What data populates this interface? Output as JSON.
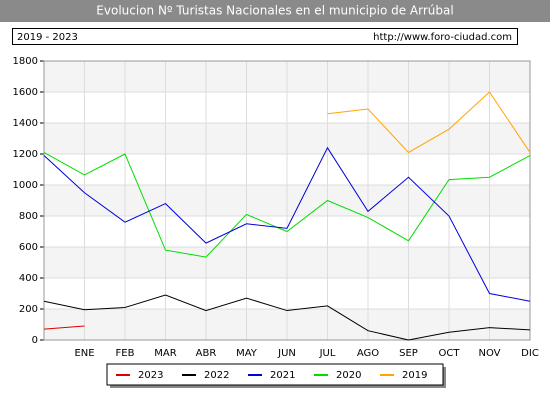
{
  "chart_data": {
    "type": "line",
    "title": "Evolucion Nº Turistas Nacionales en el municipio de Arrúbal",
    "period": "2019 - 2023",
    "source": "http://www.foro-ciudad.com",
    "categories": [
      null,
      "ENE",
      "FEB",
      "MAR",
      "ABR",
      "MAY",
      "JUN",
      "JUL",
      "AGO",
      "SEP",
      "OCT",
      "NOV",
      "DIC"
    ],
    "series": [
      {
        "name": "2023",
        "color": "#dd0000",
        "values": [
          70,
          90,
          null,
          null,
          null,
          null,
          null,
          null,
          null,
          null,
          null,
          null,
          null
        ]
      },
      {
        "name": "2022",
        "color": "#000000",
        "values": [
          250,
          195,
          210,
          290,
          190,
          270,
          190,
          220,
          60,
          0,
          50,
          80,
          65
        ]
      },
      {
        "name": "2021",
        "color": "#0000dd",
        "values": [
          1190,
          950,
          760,
          880,
          625,
          750,
          720,
          1240,
          830,
          1050,
          800,
          300,
          250
        ]
      },
      {
        "name": "2020",
        "color": "#00dd00",
        "values": [
          1210,
          1065,
          1200,
          580,
          535,
          810,
          700,
          900,
          790,
          640,
          1035,
          1050,
          1190
        ]
      },
      {
        "name": "2019",
        "color": "#ffa500",
        "values": [
          null,
          null,
          null,
          null,
          null,
          null,
          null,
          1460,
          1490,
          1210,
          1360,
          1600,
          1210
        ]
      }
    ],
    "ylim": [
      0,
      1800
    ],
    "yticks": [
      0,
      200,
      400,
      600,
      800,
      1000,
      1200,
      1400,
      1600,
      1800
    ],
    "grid": true
  }
}
